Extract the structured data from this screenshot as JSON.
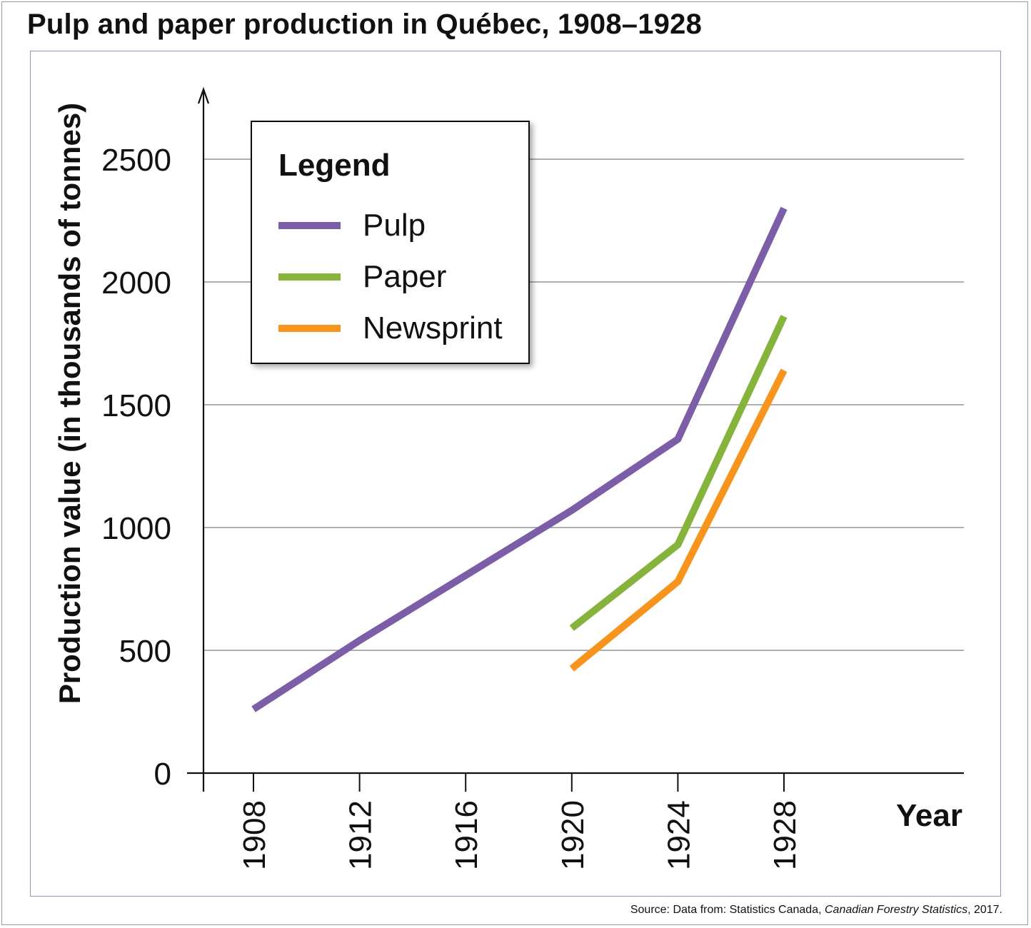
{
  "title": "Pulp and paper production in Québec, 1908–1928",
  "source": {
    "prefix": "Source: Data from: Statistics Canada, ",
    "publication": "Canadian Forestry Statistics",
    "suffix": ", 2017."
  },
  "chart_data": {
    "type": "line",
    "title": "Pulp and paper production in Québec, 1908–1928",
    "xlabel": "Year",
    "ylabel": "Production value (in thousands of tonnes)",
    "xticks": [
      "1908",
      "1912",
      "1916",
      "1920",
      "1924",
      "1928"
    ],
    "yticks": [
      0,
      500,
      1000,
      1500,
      2000,
      2500
    ],
    "ylim": [
      0,
      2750
    ],
    "grid": true,
    "legend": {
      "title": "Legend",
      "position": "top-left"
    },
    "series": [
      {
        "name": "Pulp",
        "color": "#7b5ea7",
        "points": [
          {
            "x": 1908,
            "y": 260
          },
          {
            "x": 1912,
            "y": 540
          },
          {
            "x": 1920,
            "y": 1070
          },
          {
            "x": 1924,
            "y": 1360
          },
          {
            "x": 1928,
            "y": 2300
          }
        ]
      },
      {
        "name": "Paper",
        "color": "#86b33c",
        "points": [
          {
            "x": 1920,
            "y": 590
          },
          {
            "x": 1924,
            "y": 930
          },
          {
            "x": 1928,
            "y": 1860
          }
        ]
      },
      {
        "name": "Newsprint",
        "color": "#f7941d",
        "points": [
          {
            "x": 1920,
            "y": 425
          },
          {
            "x": 1924,
            "y": 780
          },
          {
            "x": 1928,
            "y": 1640
          }
        ]
      }
    ]
  }
}
